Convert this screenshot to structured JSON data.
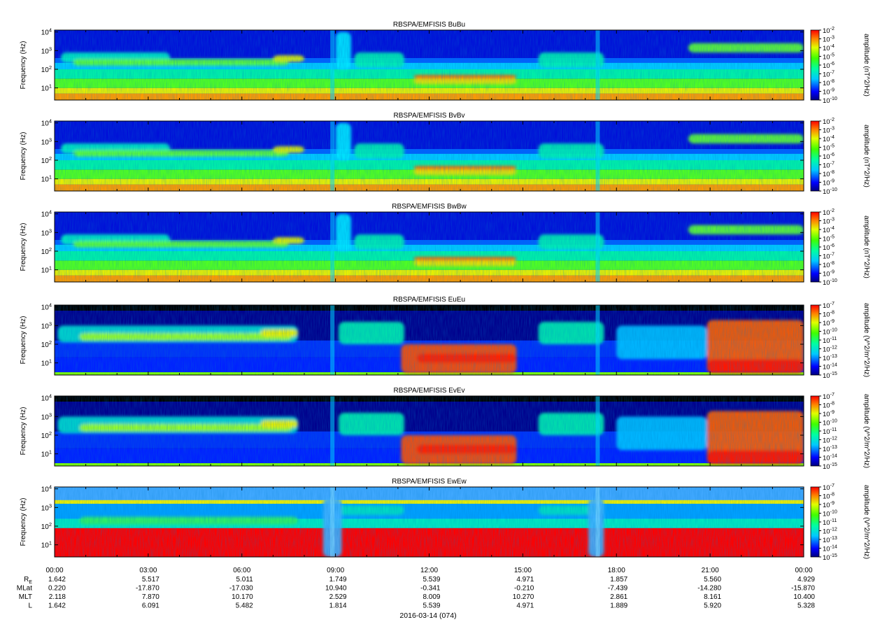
{
  "chart_data": {
    "type": "heatmap",
    "date_label": "2016-03-14 (074)",
    "x_ticks": [
      "00:00",
      "03:00",
      "06:00",
      "09:00",
      "12:00",
      "15:00",
      "18:00",
      "21:00",
      "00:00"
    ],
    "ylabel": "Frequency (Hz)",
    "y_ticks": [
      "10^1",
      "10^2",
      "10^3",
      "10^4"
    ],
    "panels": [
      {
        "title": "RBSPA/EMFISIS  BuBu",
        "colorbar_label": "amplitude (nT^2/Hz)",
        "colorbar_ticks": [
          "10^-10",
          "10^-9",
          "10^-8",
          "10^-7",
          "10^-6",
          "10^-5",
          "10^-4",
          "10^-3",
          "10^-2"
        ],
        "kind": "B"
      },
      {
        "title": "RBSPA/EMFISIS  BvBv",
        "colorbar_label": "amplitude (nT^2/Hz)",
        "colorbar_ticks": [
          "10^-10",
          "10^-9",
          "10^-8",
          "10^-7",
          "10^-6",
          "10^-5",
          "10^-4",
          "10^-3",
          "10^-2"
        ],
        "kind": "B"
      },
      {
        "title": "RBSPA/EMFISIS  BwBw",
        "colorbar_label": "amplitude (nT^2/Hz)",
        "colorbar_ticks": [
          "10^-10",
          "10^-9",
          "10^-8",
          "10^-7",
          "10^-6",
          "10^-5",
          "10^-4",
          "10^-3",
          "10^-2"
        ],
        "kind": "B"
      },
      {
        "title": "RBSPA/EMFISIS  EuEu",
        "colorbar_label": "amplitude (V^2/m^2/Hz)",
        "colorbar_ticks": [
          "10^-15",
          "10^-14",
          "10^-13",
          "10^-12",
          "10^-11",
          "10^-10",
          "10^-9",
          "10^-8",
          "10^-7"
        ],
        "kind": "E"
      },
      {
        "title": "RBSPA/EMFISIS  EvEv",
        "colorbar_label": "amplitude (V^2/m^2/Hz)",
        "colorbar_ticks": [
          "10^-15",
          "10^-14",
          "10^-13",
          "10^-12",
          "10^-11",
          "10^-10",
          "10^-9",
          "10^-8",
          "10^-7"
        ],
        "kind": "E"
      },
      {
        "title": "RBSPA/EMFISIS  EwEw",
        "colorbar_label": "amplitude (V^2/m^2/Hz)",
        "colorbar_ticks": [
          "10^-15",
          "10^-14",
          "10^-13",
          "10^-12",
          "10^-11",
          "10^-10",
          "10^-9",
          "10^-8",
          "10^-7"
        ],
        "kind": "Ew"
      }
    ],
    "ephemeris": [
      {
        "label": "R_E",
        "values": [
          "1.642",
          "5.517",
          "5.011",
          "1.749",
          "5.539",
          "4.971",
          "1.857",
          "5.560",
          "4.929"
        ]
      },
      {
        "label": "MLat",
        "values": [
          "0.220",
          "-17.870",
          "-17.030",
          "10.940",
          "-0.341",
          "-0.210",
          "-7.439",
          "-14.280",
          "-15.870"
        ]
      },
      {
        "label": "MLT",
        "values": [
          "2.118",
          "7.870",
          "10.170",
          "2.529",
          "8.009",
          "10.270",
          "2.861",
          "8.161",
          "10.400"
        ]
      },
      {
        "label": "L",
        "values": [
          "1.642",
          "6.091",
          "5.482",
          "1.814",
          "5.539",
          "4.971",
          "1.889",
          "5.920",
          "5.328"
        ]
      }
    ]
  }
}
